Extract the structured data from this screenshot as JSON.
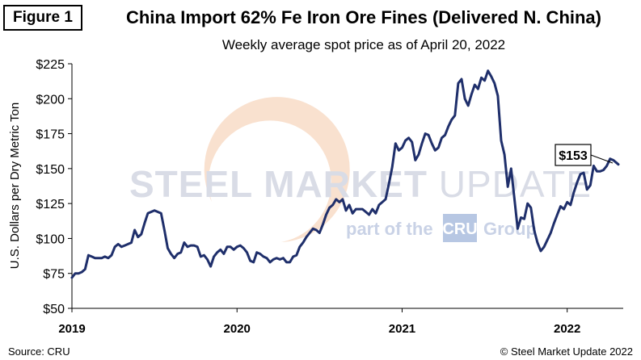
{
  "figure_label": "Figure 1",
  "source": "Source: CRU",
  "copyright": "© Steel Market Update 2022",
  "watermark": {
    "brand": "STEEL MARKET UPDATE",
    "brand_bold": "STEEL",
    "brand_mid": "MARKET",
    "brand_light": "UPDATE",
    "tagline_pre": "part of the",
    "tagline_logo": "CRU",
    "tagline_post": "Group"
  },
  "colors": {
    "line": "#1f2f6b",
    "watermark_brand": "#d9dce6",
    "watermark_sub": "#c9d2e6",
    "watermark_logo_bg": "#b7c7e3",
    "swoosh": "#f4c8a8"
  },
  "chart_data": {
    "type": "line",
    "title": "China Import 62% Fe Iron Ore Fines (Delivered N. China)",
    "subtitle": "Weekly average spot price as of April 20, 2022",
    "xlabel": "",
    "ylabel": "U.S. Dollars per Dry Metric Ton",
    "ylim": [
      50,
      225
    ],
    "y_ticks": [
      50,
      75,
      100,
      125,
      150,
      175,
      200,
      225
    ],
    "y_tick_labels": [
      "$50",
      "$75",
      "$100",
      "$125",
      "$150",
      "$175",
      "$200",
      "$225"
    ],
    "xlim": [
      2019.0,
      2022.31
    ],
    "x_ticks": [
      2019,
      2020,
      2021,
      2022
    ],
    "x_tick_labels": [
      "2019",
      "2020",
      "2021",
      "2022"
    ],
    "grid": false,
    "annotation": {
      "text": "$153",
      "x": 2022.3,
      "y": 153
    },
    "series": [
      {
        "name": "China Import 62% Fe Iron Ore Fines",
        "points": [
          [
            2019.0,
            72
          ],
          [
            2019.02,
            75
          ],
          [
            2019.04,
            75
          ],
          [
            2019.06,
            76
          ],
          [
            2019.08,
            78
          ],
          [
            2019.1,
            88
          ],
          [
            2019.12,
            87
          ],
          [
            2019.14,
            86
          ],
          [
            2019.16,
            86
          ],
          [
            2019.18,
            86
          ],
          [
            2019.2,
            87
          ],
          [
            2019.22,
            86
          ],
          [
            2019.24,
            88
          ],
          [
            2019.26,
            94
          ],
          [
            2019.28,
            96
          ],
          [
            2019.3,
            94
          ],
          [
            2019.32,
            95
          ],
          [
            2019.34,
            96
          ],
          [
            2019.36,
            97
          ],
          [
            2019.38,
            106
          ],
          [
            2019.4,
            101
          ],
          [
            2019.42,
            103
          ],
          [
            2019.44,
            111
          ],
          [
            2019.46,
            118
          ],
          [
            2019.48,
            119
          ],
          [
            2019.5,
            120
          ],
          [
            2019.52,
            119
          ],
          [
            2019.54,
            118
          ],
          [
            2019.56,
            106
          ],
          [
            2019.58,
            93
          ],
          [
            2019.6,
            89
          ],
          [
            2019.62,
            86
          ],
          [
            2019.64,
            89
          ],
          [
            2019.66,
            90
          ],
          [
            2019.68,
            97
          ],
          [
            2019.7,
            94
          ],
          [
            2019.72,
            95
          ],
          [
            2019.74,
            95
          ],
          [
            2019.76,
            94
          ],
          [
            2019.78,
            87
          ],
          [
            2019.8,
            88
          ],
          [
            2019.82,
            85
          ],
          [
            2019.84,
            80
          ],
          [
            2019.86,
            87
          ],
          [
            2019.88,
            90
          ],
          [
            2019.9,
            92
          ],
          [
            2019.92,
            89
          ],
          [
            2019.94,
            94
          ],
          [
            2019.96,
            94
          ],
          [
            2019.98,
            92
          ],
          [
            2020.0,
            94
          ],
          [
            2020.02,
            95
          ],
          [
            2020.04,
            93
          ],
          [
            2020.06,
            90
          ],
          [
            2020.08,
            84
          ],
          [
            2020.1,
            83
          ],
          [
            2020.12,
            90
          ],
          [
            2020.14,
            89
          ],
          [
            2020.16,
            87
          ],
          [
            2020.18,
            86
          ],
          [
            2020.2,
            83
          ],
          [
            2020.22,
            85
          ],
          [
            2020.24,
            86
          ],
          [
            2020.26,
            85
          ],
          [
            2020.28,
            86
          ],
          [
            2020.3,
            83
          ],
          [
            2020.32,
            83
          ],
          [
            2020.34,
            87
          ],
          [
            2020.36,
            88
          ],
          [
            2020.38,
            94
          ],
          [
            2020.4,
            97
          ],
          [
            2020.42,
            101
          ],
          [
            2020.44,
            104
          ],
          [
            2020.46,
            107
          ],
          [
            2020.48,
            106
          ],
          [
            2020.5,
            104
          ],
          [
            2020.52,
            110
          ],
          [
            2020.54,
            117
          ],
          [
            2020.56,
            122
          ],
          [
            2020.58,
            124
          ],
          [
            2020.6,
            128
          ],
          [
            2020.62,
            126
          ],
          [
            2020.64,
            128
          ],
          [
            2020.66,
            120
          ],
          [
            2020.68,
            124
          ],
          [
            2020.7,
            118
          ],
          [
            2020.72,
            121
          ],
          [
            2020.74,
            121
          ],
          [
            2020.76,
            121
          ],
          [
            2020.78,
            119
          ],
          [
            2020.8,
            117
          ],
          [
            2020.82,
            121
          ],
          [
            2020.84,
            118
          ],
          [
            2020.86,
            124
          ],
          [
            2020.88,
            126
          ],
          [
            2020.9,
            128
          ],
          [
            2020.92,
            139
          ],
          [
            2020.94,
            151
          ],
          [
            2020.96,
            168
          ],
          [
            2020.98,
            163
          ],
          [
            2021.0,
            165
          ],
          [
            2021.02,
            170
          ],
          [
            2021.04,
            172
          ],
          [
            2021.06,
            169
          ],
          [
            2021.08,
            156
          ],
          [
            2021.1,
            160
          ],
          [
            2021.12,
            168
          ],
          [
            2021.14,
            175
          ],
          [
            2021.16,
            174
          ],
          [
            2021.18,
            168
          ],
          [
            2021.2,
            163
          ],
          [
            2021.22,
            165
          ],
          [
            2021.24,
            172
          ],
          [
            2021.26,
            174
          ],
          [
            2021.28,
            180
          ],
          [
            2021.3,
            185
          ],
          [
            2021.32,
            188
          ],
          [
            2021.34,
            211
          ],
          [
            2021.36,
            214
          ],
          [
            2021.38,
            200
          ],
          [
            2021.4,
            195
          ],
          [
            2021.42,
            203
          ],
          [
            2021.44,
            210
          ],
          [
            2021.46,
            207
          ],
          [
            2021.48,
            215
          ],
          [
            2021.5,
            213
          ],
          [
            2021.52,
            220
          ],
          [
            2021.54,
            216
          ],
          [
            2021.56,
            211
          ],
          [
            2021.58,
            202
          ],
          [
            2021.6,
            170
          ],
          [
            2021.62,
            160
          ],
          [
            2021.64,
            137
          ],
          [
            2021.66,
            150
          ],
          [
            2021.68,
            129
          ],
          [
            2021.7,
            107
          ],
          [
            2021.72,
            115
          ],
          [
            2021.74,
            114
          ],
          [
            2021.76,
            125
          ],
          [
            2021.78,
            122
          ],
          [
            2021.8,
            106
          ],
          [
            2021.82,
            97
          ],
          [
            2021.84,
            91
          ],
          [
            2021.86,
            94
          ],
          [
            2021.88,
            99
          ],
          [
            2021.9,
            104
          ],
          [
            2021.92,
            111
          ],
          [
            2021.94,
            117
          ],
          [
            2021.96,
            123
          ],
          [
            2021.98,
            121
          ],
          [
            2022.0,
            126
          ],
          [
            2022.02,
            124
          ],
          [
            2022.04,
            133
          ],
          [
            2022.06,
            140
          ],
          [
            2022.08,
            146
          ],
          [
            2022.1,
            147
          ],
          [
            2022.12,
            135
          ],
          [
            2022.14,
            138
          ],
          [
            2022.16,
            152
          ],
          [
            2022.18,
            148
          ],
          [
            2022.2,
            148
          ],
          [
            2022.22,
            149
          ],
          [
            2022.24,
            152
          ],
          [
            2022.26,
            157
          ],
          [
            2022.28,
            156
          ],
          [
            2022.31,
            153
          ]
        ]
      }
    ]
  }
}
